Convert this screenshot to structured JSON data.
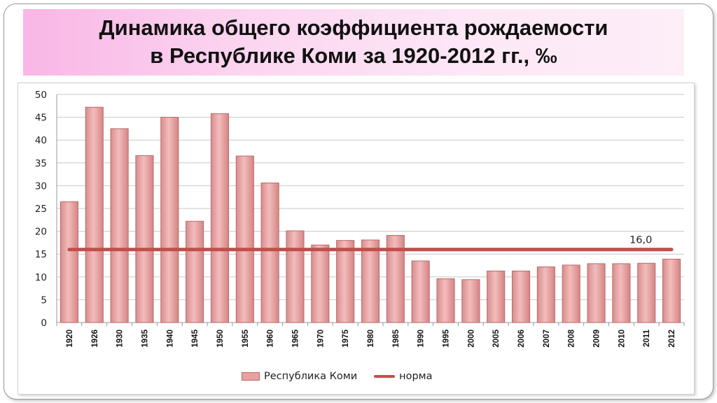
{
  "slide": {
    "title_line1": "Динамика общего коэффициента рождаемости",
    "title_line2": "в Республике Коми за 1920-2012 гг., ‰"
  },
  "chart_data": {
    "type": "bar",
    "title": "",
    "xlabel": "",
    "ylabel": "",
    "ylim": [
      0,
      50
    ],
    "yticks": [
      0,
      5,
      10,
      15,
      20,
      25,
      30,
      35,
      40,
      45,
      50
    ],
    "grid": true,
    "legend_position": "bottom",
    "categories": [
      "1920",
      "1926",
      "1930",
      "1935",
      "1940",
      "1945",
      "1950",
      "1955",
      "1960",
      "1965",
      "1970",
      "1975",
      "1980",
      "1985",
      "1990",
      "1995",
      "2000",
      "2005",
      "2006",
      "2007",
      "2008",
      "2009",
      "2010",
      "2011",
      "2012"
    ],
    "series": [
      {
        "name": "Республика Коми",
        "type": "bar",
        "color": "#e8a0a0",
        "values": [
          26.5,
          47.2,
          42.5,
          36.6,
          45.0,
          22.2,
          45.8,
          36.5,
          30.6,
          20.1,
          17.0,
          18.0,
          18.1,
          19.1,
          13.5,
          9.6,
          9.4,
          11.3,
          11.3,
          12.2,
          12.6,
          12.9,
          12.9,
          13.0,
          13.9
        ]
      },
      {
        "name": "норма",
        "type": "line",
        "color": "#c0504d",
        "value": 16.0,
        "label": "16,0"
      }
    ]
  }
}
